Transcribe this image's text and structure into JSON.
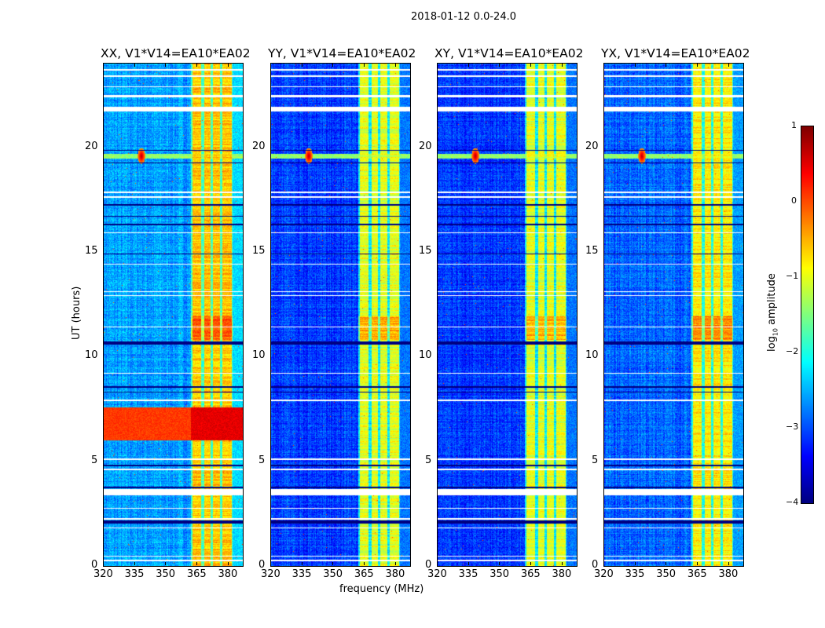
{
  "chart_data": {
    "type": "heatmap",
    "title": "2018-01-12 0.0-24.0",
    "xlabel": "frequency (MHz)",
    "ylabel": "UT (hours)",
    "xlim": [
      320,
      387
    ],
    "ylim": [
      0,
      24
    ],
    "xticks": [
      "320",
      "335",
      "350",
      "365",
      "380"
    ],
    "yticks": [
      "0",
      "5",
      "10",
      "15",
      "20"
    ],
    "panels": [
      {
        "title": "XX, V1*V14=EA10*EA02",
        "background_log_amp": -2.6,
        "band_log_amp": -0.6,
        "strong_rfi_hours": [
          6.0,
          7.6
        ]
      },
      {
        "title": "YY, V1*V14=EA10*EA02",
        "background_log_amp": -3.1,
        "band_log_amp": -1.0
      },
      {
        "title": "XY, V1*V14=EA10*EA02",
        "background_log_amp": -3.1,
        "band_log_amp": -1.0
      },
      {
        "title": "YX, V1*V14=EA10*EA02",
        "background_log_amp": -2.9,
        "band_log_amp": -0.8
      }
    ],
    "band_mhz": [
      362,
      382
    ],
    "rfi_spot": {
      "freq_mhz": 338,
      "hour": 19.6,
      "log_amp": 0.8
    },
    "colorbar": {
      "label": "log10 amplitude",
      "label_base": "log",
      "label_sub": "10",
      "label_rest": " amplitude",
      "range": [
        -4,
        1
      ],
      "ticks": [
        "1",
        "0",
        "−1",
        "−2",
        "−3",
        "−4"
      ],
      "colormap": "jet"
    }
  }
}
